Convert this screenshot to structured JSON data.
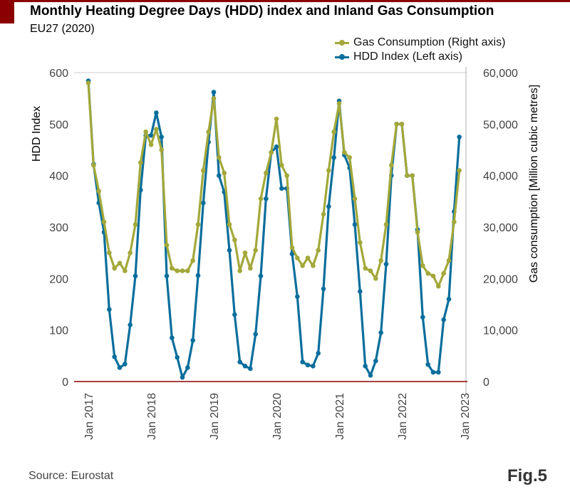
{
  "header": {
    "title": "Monthly Heating Degree Days (HDD) index and Inland Gas Consumption",
    "subtitle": "EU27 (2020)"
  },
  "footer": {
    "source": "Source: Eurostat",
    "figure_label": "Fig.5"
  },
  "colors": {
    "hdd": "#0a6e9c",
    "gas": "#a3a83a",
    "baseline": "#8b0000",
    "brand": "#8b0000",
    "grid": "#cccccc"
  },
  "chart_data": {
    "type": "line",
    "title": "Monthly Heating Degree Days (HDD) index and Inland Gas Consumption",
    "subtitle": "EU27 (2020)",
    "xlabel": "",
    "ylabel": "HDD Index",
    "y2label": "Gas consumption [Million cubic metres]",
    "ylim": [
      0,
      600
    ],
    "y2lim": [
      0,
      60000
    ],
    "yticks": [
      "0",
      "100",
      "200",
      "300",
      "400",
      "500",
      "600"
    ],
    "y2ticks": [
      "0",
      "10,000",
      "20,000",
      "30,000",
      "40,000",
      "50,000",
      "60,000"
    ],
    "xticks": [
      "Jan 2017",
      "Jan 2018",
      "Jan 2019",
      "Jan 2020",
      "Jan 2021",
      "Jan 2022",
      "Jan 2023"
    ],
    "x_start": "Jan 2017",
    "x_end": "Dec 2022",
    "legend_position": "top-right",
    "legend": [
      "Gas Consumption (Right axis)",
      "HDD Index (Left axis)"
    ],
    "series": [
      {
        "name": "Gas Consumption (Right axis)",
        "axis": "right",
        "values": [
          58000,
          42000,
          37000,
          31000,
          25000,
          22000,
          23000,
          21500,
          25000,
          30500,
          42500,
          48500,
          46000,
          49000,
          45000,
          26500,
          22000,
          21500,
          21500,
          21500,
          23500,
          30500,
          41000,
          48500,
          55000,
          43500,
          40500,
          30500,
          27500,
          21500,
          25000,
          22000,
          25500,
          35500,
          40500,
          44500,
          51000,
          42000,
          40000,
          26000,
          24000,
          22500,
          24000,
          22500,
          25500,
          32500,
          41000,
          48500,
          54000,
          44500,
          43500,
          35500,
          27000,
          22000,
          21500,
          20000,
          23500,
          30500,
          42000,
          50000,
          50000,
          40000,
          40000,
          29000,
          22500,
          21000,
          20500,
          18500,
          21000,
          23500,
          31000,
          41000
        ]
      },
      {
        "name": "HDD Index (Left axis)",
        "axis": "left",
        "values": [
          584,
          422,
          347,
          290,
          140,
          48,
          27,
          34,
          110,
          205,
          372,
          478,
          478,
          522,
          475,
          205,
          85,
          47,
          8,
          27,
          80,
          206,
          347,
          465,
          562,
          400,
          368,
          255,
          130,
          38,
          30,
          25,
          92,
          205,
          355,
          445,
          456,
          375,
          375,
          248,
          165,
          38,
          32,
          30,
          55,
          180,
          340,
          435,
          545,
          440,
          415,
          305,
          175,
          30,
          12,
          40,
          95,
          228,
          400,
          500,
          500,
          400,
          400,
          295,
          125,
          33,
          18,
          18,
          120,
          160,
          330,
          475
        ]
      }
    ]
  }
}
